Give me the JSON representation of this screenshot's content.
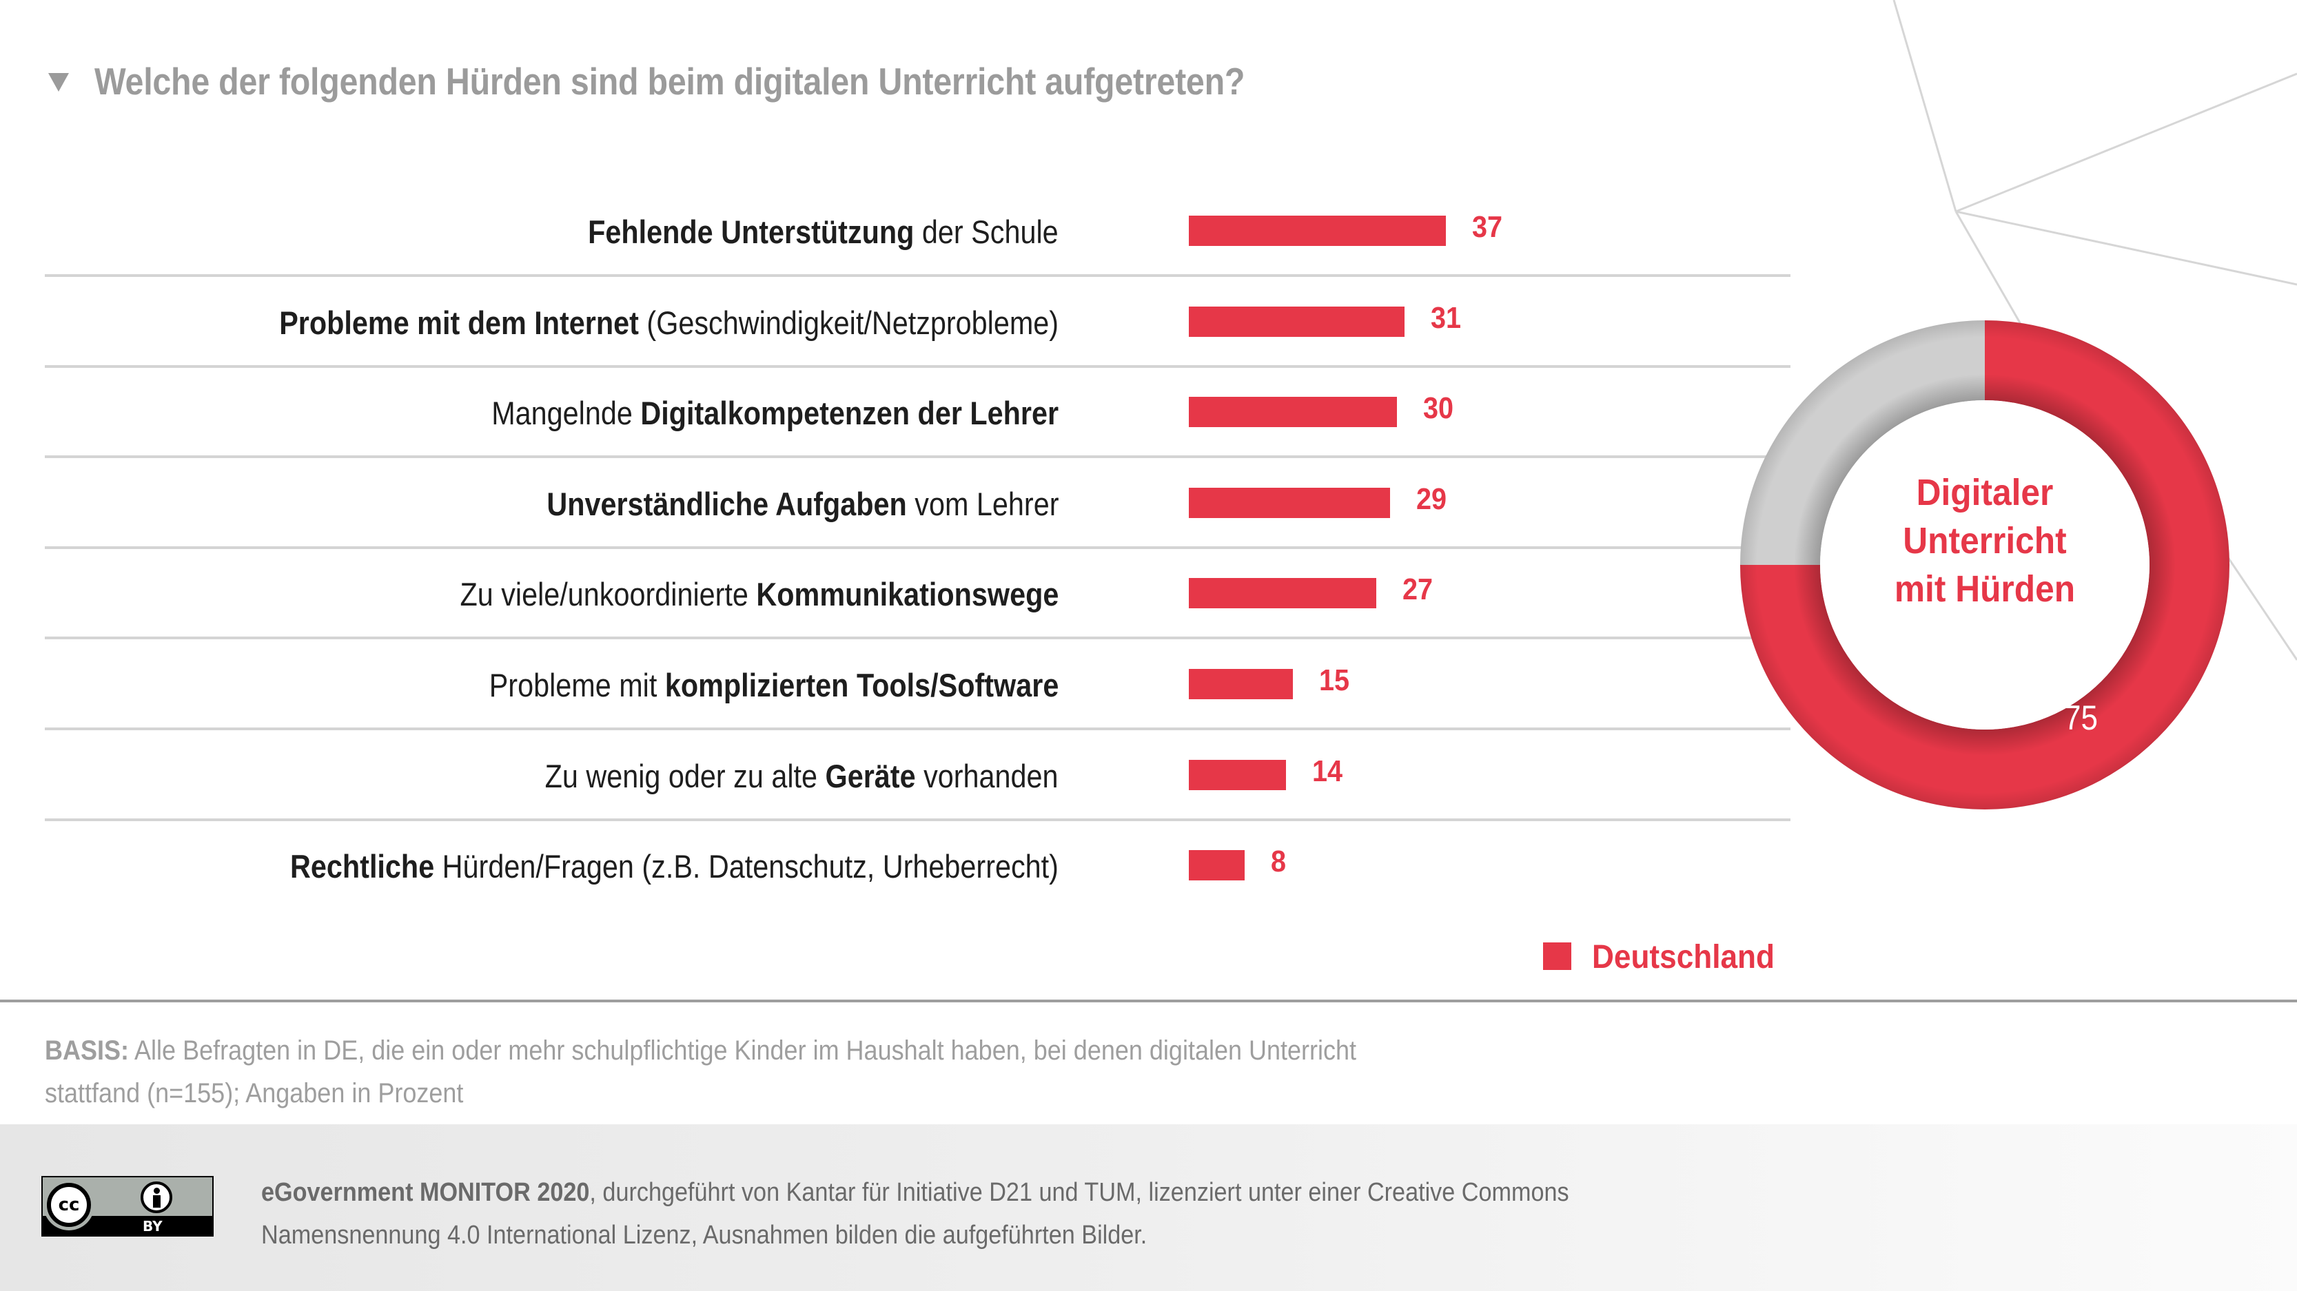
{
  "header": {
    "icon": "triangle-down-icon",
    "title": "Welche der folgenden Hürden sind beim digitalen Unterricht aufgetreten?"
  },
  "chart_data": [
    {
      "type": "bar",
      "orientation": "horizontal",
      "title": "Welche der folgenden Hürden sind beim digitalen Unterricht aufgetreten?",
      "categories": [
        "Fehlende Unterstützung der Schule",
        "Probleme mit dem Internet (Geschwindigkeit/Netzprobleme)",
        "Mangelnde Digitalkompetenzen der Lehrer",
        "Unverständliche Aufgaben vom Lehrer",
        "Zu viele/unkoordinierte Kommunikationswege",
        "Probleme mit komplizierten Tools/Software",
        "Zu wenig oder zu alte Geräte vorhanden",
        "Rechtliche Hürden/Fragen (z.B. Datenschutz, Urheberrecht)"
      ],
      "series": [
        {
          "name": "Deutschland",
          "color": "#e63748",
          "values": [
            37,
            31,
            30,
            29,
            27,
            15,
            14,
            8
          ]
        }
      ],
      "xlim": [
        0,
        37
      ],
      "unit": "Prozent",
      "grid": false,
      "legend": "bottom-right"
    },
    {
      "type": "pie",
      "variant": "donut",
      "center_label": "Digitaler Unterricht mit Hürden",
      "slices": [
        {
          "label": "Digitaler Unterricht mit Hürden",
          "value": 75,
          "color": "#e63748",
          "shown_label": "75"
        },
        {
          "label": "Rest",
          "value": 25,
          "color": "#cfcfcf"
        }
      ]
    }
  ],
  "rows": [
    {
      "parts": [
        {
          "t": "Fehlende Unterstützung",
          "b": true
        },
        {
          "t": " der Schule",
          "b": false
        }
      ],
      "value": 37,
      "value_label": "37"
    },
    {
      "parts": [
        {
          "t": "Probleme mit dem Internet",
          "b": true
        },
        {
          "t": " (Geschwindigkeit/Netzprobleme)",
          "b": false
        }
      ],
      "value": 31,
      "value_label": "31"
    },
    {
      "parts": [
        {
          "t": "Mangelnde ",
          "b": false
        },
        {
          "t": "Digitalkompetenzen der Lehrer",
          "b": true
        }
      ],
      "value": 30,
      "value_label": "30"
    },
    {
      "parts": [
        {
          "t": "Unverständliche Aufgaben",
          "b": true
        },
        {
          "t": " vom Lehrer",
          "b": false
        }
      ],
      "value": 29,
      "value_label": "29"
    },
    {
      "parts": [
        {
          "t": "Zu viele/unkoordinierte ",
          "b": false
        },
        {
          "t": "Kommunikationswege",
          "b": true
        }
      ],
      "value": 27,
      "value_label": "27"
    },
    {
      "parts": [
        {
          "t": "Probleme mit ",
          "b": false
        },
        {
          "t": "komplizierten Tools/Software",
          "b": true
        }
      ],
      "value": 15,
      "value_label": "15"
    },
    {
      "parts": [
        {
          "t": "Zu wenig oder zu alte ",
          "b": false
        },
        {
          "t": "Geräte",
          "b": true
        },
        {
          "t": " vorhanden",
          "b": false
        }
      ],
      "value": 14,
      "value_label": "14"
    },
    {
      "parts": [
        {
          "t": "Rechtliche",
          "b": true
        },
        {
          "t": " Hürden/Fragen (z.B. Datenschutz, Urheberrecht)",
          "b": false
        }
      ],
      "value": 8,
      "value_label": "8"
    }
  ],
  "legend": {
    "label": "Deutschland",
    "color": "#e63748"
  },
  "donut": {
    "center_lines": [
      "Digitaler",
      "Unterricht",
      "mit Hürden"
    ],
    "value": 75,
    "value_label": "75",
    "colors": {
      "main": "#e63748",
      "rest": "#cfcfcf"
    }
  },
  "basis": {
    "label": "BASIS:",
    "text": " Alle Befragten in DE, die ein oder mehr schulpflichtige Kinder im Haushalt haben, bei denen digitalen Unterricht stattfand (n=155); Angaben in Prozent"
  },
  "footer": {
    "license_icon": "cc-by-icon",
    "license_badge_text": {
      "cc": "cc",
      "by": "BY"
    },
    "credit_bold": "eGovernment MONITOR 2020",
    "credit_text": ", durchgeführt von Kantar für Initiative D21 und TUM, lizenziert unter einer Creative Commons Namensnennung 4.0 International Lizenz, Ausnahmen bilden die aufgeführten Bilder."
  }
}
